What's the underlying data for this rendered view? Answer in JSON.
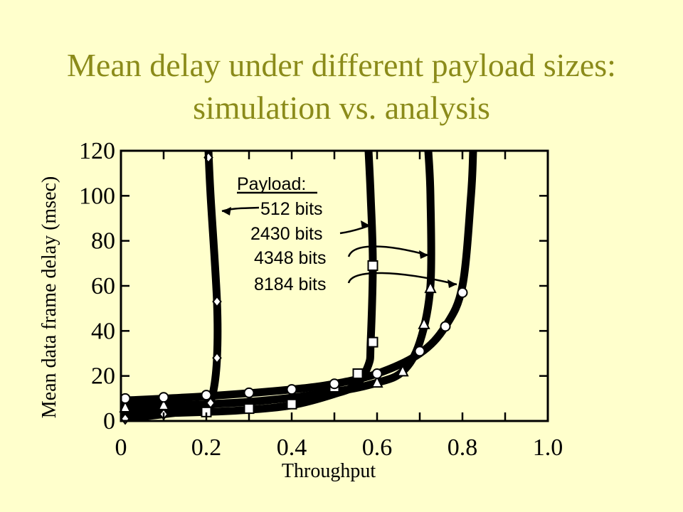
{
  "slide": {
    "title_line1": "Mean delay under different payload sizes:",
    "title_line2": "simulation vs. analysis"
  },
  "colors": {
    "background": "#FFFFCC",
    "title": "#8B8B1A",
    "ink": "#000000"
  },
  "chart_data": {
    "type": "line",
    "xlabel": "Throughput",
    "ylabel": "Mean data frame delay (msec)",
    "xlim": [
      0,
      1.0
    ],
    "ylim": [
      0,
      120
    ],
    "x_ticks": [
      0,
      0.1,
      0.2,
      0.3,
      0.4,
      0.5,
      0.6,
      0.7,
      0.8,
      0.9,
      1.0
    ],
    "x_tick_labels": [
      "0",
      "0.2",
      "0.4",
      "0.6",
      "0.8",
      "1.0"
    ],
    "x_tick_label_values": [
      0,
      0.2,
      0.4,
      0.6,
      0.8,
      1.0
    ],
    "y_ticks": [
      0,
      20,
      40,
      60,
      80,
      100,
      120
    ],
    "y_tick_labels": [
      "0",
      "20",
      "40",
      "60",
      "80",
      "100",
      "120"
    ],
    "grid": false,
    "legend": {
      "title": "Payload",
      "title_suffix": ":",
      "placement": "top-center"
    },
    "series": [
      {
        "name": "512 bits",
        "marker": "diamond",
        "curve": [
          [
            0.0,
            1
          ],
          [
            0.1,
            3
          ],
          [
            0.17,
            5
          ],
          [
            0.2,
            7
          ],
          [
            0.215,
            12
          ],
          [
            0.225,
            28
          ],
          [
            0.225,
            53
          ],
          [
            0.21,
            100
          ],
          [
            0.205,
            120
          ]
        ],
        "points": [
          [
            0.01,
            1
          ],
          [
            0.1,
            3
          ],
          [
            0.21,
            8
          ],
          [
            0.225,
            28
          ],
          [
            0.225,
            53
          ],
          [
            0.205,
            117
          ]
        ]
      },
      {
        "name": "2430 bits",
        "marker": "square",
        "curve": [
          [
            0.0,
            3
          ],
          [
            0.2,
            4
          ],
          [
            0.3,
            5
          ],
          [
            0.4,
            7
          ],
          [
            0.5,
            12
          ],
          [
            0.55,
            16
          ],
          [
            0.58,
            25
          ],
          [
            0.585,
            35
          ],
          [
            0.59,
            70
          ],
          [
            0.585,
            100
          ],
          [
            0.58,
            120
          ]
        ],
        "points": [
          [
            0.2,
            4
          ],
          [
            0.3,
            5.5
          ],
          [
            0.4,
            7.5
          ],
          [
            0.5,
            15
          ],
          [
            0.555,
            21
          ],
          [
            0.59,
            35
          ],
          [
            0.59,
            69
          ]
        ]
      },
      {
        "name": "4348 bits",
        "marker": "triangle",
        "curve": [
          [
            0.0,
            6
          ],
          [
            0.3,
            8.5
          ],
          [
            0.5,
            13
          ],
          [
            0.6,
            17
          ],
          [
            0.66,
            22
          ],
          [
            0.7,
            35
          ],
          [
            0.725,
            60
          ],
          [
            0.725,
            100
          ],
          [
            0.72,
            120
          ]
        ],
        "points": [
          [
            0.01,
            6
          ],
          [
            0.1,
            7
          ],
          [
            0.6,
            17
          ],
          [
            0.66,
            22
          ],
          [
            0.71,
            43
          ],
          [
            0.725,
            59
          ]
        ]
      },
      {
        "name": "8184 bits",
        "marker": "circle",
        "curve": [
          [
            0.0,
            9
          ],
          [
            0.2,
            11
          ],
          [
            0.4,
            14
          ],
          [
            0.5,
            16.5
          ],
          [
            0.6,
            21
          ],
          [
            0.7,
            30
          ],
          [
            0.76,
            42
          ],
          [
            0.8,
            60
          ],
          [
            0.82,
            100
          ],
          [
            0.825,
            120
          ]
        ],
        "points": [
          [
            0.01,
            10
          ],
          [
            0.1,
            10.5
          ],
          [
            0.2,
            11.5
          ],
          [
            0.3,
            12.5
          ],
          [
            0.4,
            14
          ],
          [
            0.5,
            16.5
          ],
          [
            0.6,
            21
          ],
          [
            0.7,
            31
          ],
          [
            0.76,
            42
          ],
          [
            0.8,
            57
          ]
        ]
      }
    ]
  }
}
